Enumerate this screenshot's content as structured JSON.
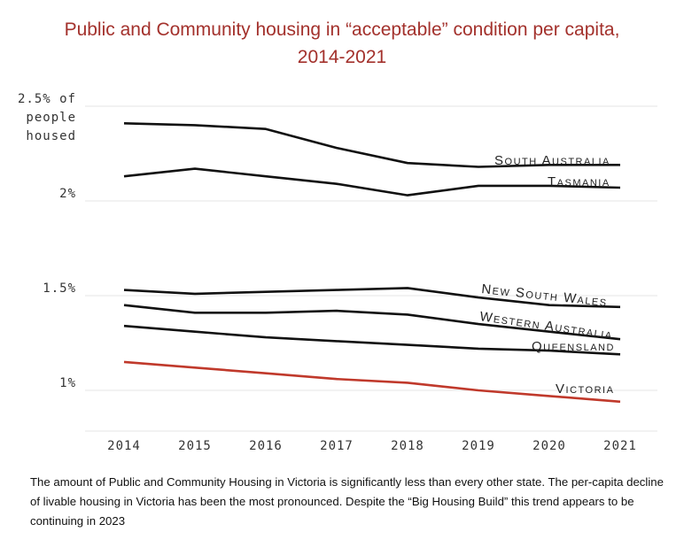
{
  "title_line1": "Public and Community housing in “acceptable” condition per capita,",
  "title_line2": "2014-2021",
  "caption": "The amount of Public and Community Housing in Victoria is significantly less than every other state. The per-capita decline of livable housing in Victoria has been the most pronounced. Despite the “Big Housing Build” this trend appears to be continuing in 2023",
  "chart_data": {
    "type": "line",
    "x": [
      2014,
      2015,
      2016,
      2017,
      2018,
      2019,
      2020,
      2021
    ],
    "ylim": [
      0.8,
      2.55
    ],
    "yticks": [
      {
        "value": 1.0,
        "label": "1%"
      },
      {
        "value": 1.5,
        "label": "1.5%"
      },
      {
        "value": 2.0,
        "label": "2%"
      },
      {
        "value": 2.5,
        "label": "2.5% of"
      }
    ],
    "ylabel_lines": [
      "people",
      "housed"
    ],
    "grid": true,
    "series": [
      {
        "name": "South Australia",
        "color": "#111111",
        "values": [
          2.41,
          2.4,
          2.38,
          2.28,
          2.2,
          2.18,
          2.19,
          2.19
        ]
      },
      {
        "name": "Tasmania",
        "color": "#111111",
        "values": [
          2.13,
          2.17,
          2.13,
          2.09,
          2.03,
          2.08,
          2.08,
          2.07
        ]
      },
      {
        "name": "New South Wales",
        "color": "#111111",
        "values": [
          1.53,
          1.51,
          1.52,
          1.53,
          1.54,
          1.49,
          1.45,
          1.44
        ]
      },
      {
        "name": "Western Australia",
        "color": "#111111",
        "values": [
          1.45,
          1.41,
          1.41,
          1.42,
          1.4,
          1.35,
          1.31,
          1.27
        ]
      },
      {
        "name": "Queensland",
        "color": "#111111",
        "values": [
          1.34,
          1.31,
          1.28,
          1.26,
          1.24,
          1.22,
          1.21,
          1.19
        ]
      },
      {
        "name": "Victoria",
        "color": "#c0392b",
        "values": [
          1.15,
          1.12,
          1.09,
          1.06,
          1.04,
          1.0,
          0.97,
          0.94
        ]
      }
    ]
  }
}
